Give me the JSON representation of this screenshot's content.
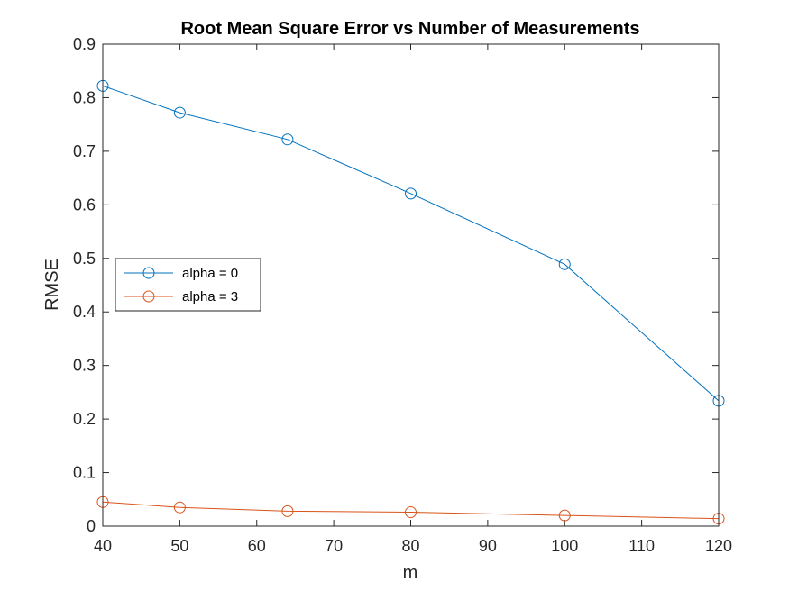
{
  "chart_data": {
    "type": "line",
    "title": "Root Mean Square Error vs Number of Measurements",
    "xlabel": "m",
    "ylabel": "RMSE",
    "xlim": [
      40,
      120
    ],
    "ylim": [
      0,
      0.9
    ],
    "xticks": [
      "40",
      "50",
      "60",
      "70",
      "80",
      "90",
      "100",
      "110",
      "120"
    ],
    "yticks": [
      "0",
      "0.1",
      "0.2",
      "0.3",
      "0.4",
      "0.5",
      "0.6",
      "0.7",
      "0.8",
      "0.9"
    ],
    "grid": false,
    "legend_position": "middle-left",
    "x": [
      40,
      50,
      64,
      80,
      100,
      120
    ],
    "series": [
      {
        "name": "alpha = 0",
        "color": "#0072BD",
        "marker": "circle",
        "values": [
          0.822,
          0.772,
          0.722,
          0.621,
          0.489,
          0.234
        ]
      },
      {
        "name": "alpha = 3",
        "color": "#D95319",
        "marker": "circle",
        "values": [
          0.045,
          0.035,
          0.028,
          0.026,
          0.02,
          0.014
        ]
      }
    ]
  }
}
